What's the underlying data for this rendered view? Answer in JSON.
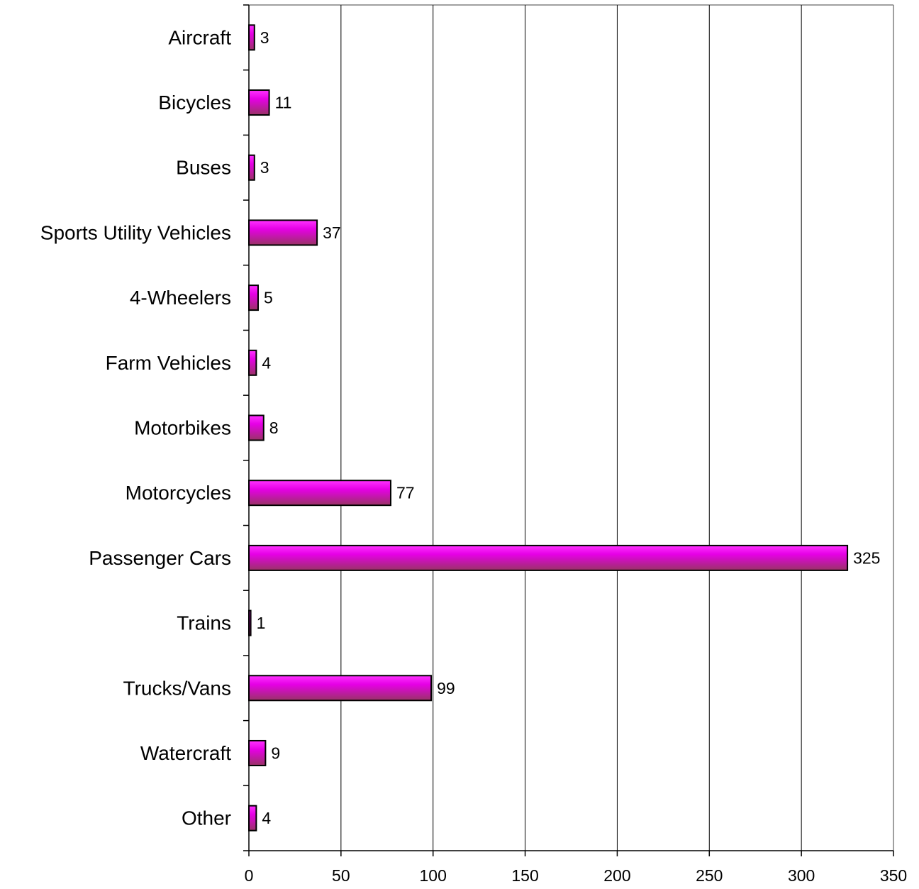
{
  "chart_data": {
    "type": "bar",
    "orientation": "horizontal",
    "categories": [
      "Aircraft",
      "Bicycles",
      "Buses",
      "Sports Utility Vehicles",
      "4-Wheelers",
      "Farm Vehicles",
      "Motorbikes",
      "Motorcycles",
      "Passenger Cars",
      "Trains",
      "Trucks/Vans",
      "Watercraft",
      "Other"
    ],
    "values": [
      3,
      11,
      3,
      37,
      5,
      4,
      8,
      77,
      325,
      1,
      99,
      9,
      4
    ],
    "data_labels": [
      "3",
      "11",
      "3",
      "37",
      "5",
      "4",
      "8",
      "77",
      "325",
      "1",
      "99",
      "9",
      "4"
    ],
    "xlim": [
      0,
      350
    ],
    "xticks": [
      0,
      50,
      100,
      150,
      200,
      250,
      300,
      350
    ],
    "xtick_labels": [
      "0",
      "50",
      "100",
      "150",
      "200",
      "250",
      "300",
      "350"
    ],
    "grid": "vertical",
    "legend": "none",
    "colors": {
      "bar_top": "#ff33ff",
      "bar_mid": "#e600e6",
      "bar_bottom": "#993366",
      "bar_edge": "#000000",
      "grid": "#000000",
      "frame": "#808080"
    }
  }
}
